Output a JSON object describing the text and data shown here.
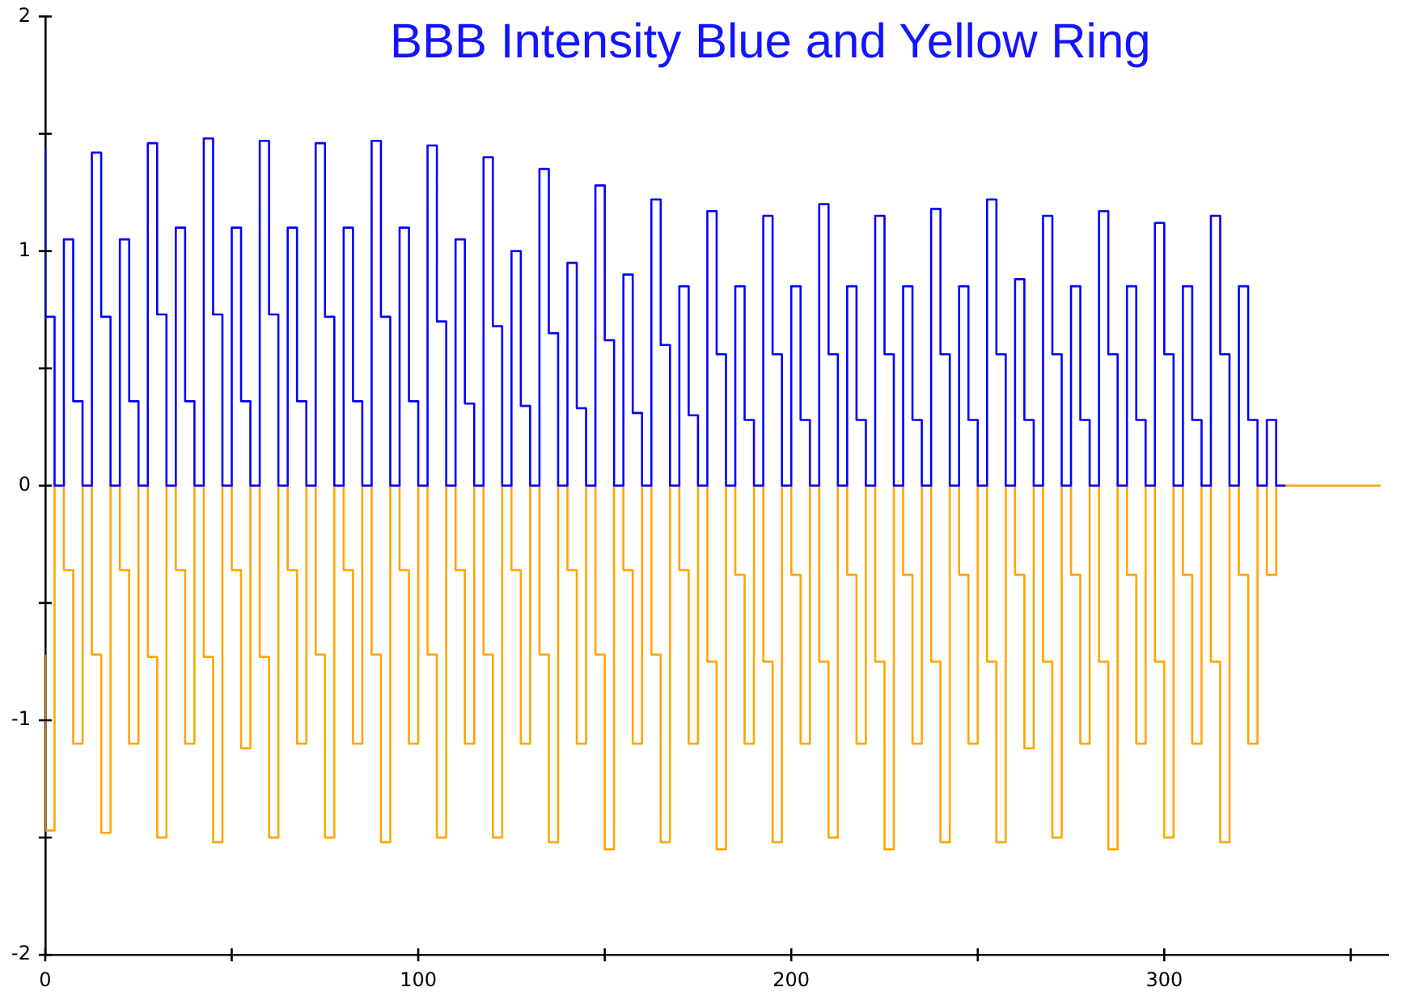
{
  "chart_data": {
    "type": "step",
    "title": "BBB Intensity Blue and Yellow Ring",
    "xlim": [
      0,
      360
    ],
    "xticks": [
      0,
      {
        "value": 50,
        "label": null
      },
      100,
      {
        "value": 150,
        "label": null
      },
      200,
      {
        "value": 250,
        "label": null
      },
      300,
      {
        "value": 350,
        "label": null
      }
    ],
    "ylim": [
      -2,
      2
    ],
    "yticks": [
      -2,
      {
        "value": -1.5,
        "label": null
      },
      -1,
      {
        "value": -0.5,
        "label": null
      },
      0,
      {
        "value": 0.5,
        "label": null
      },
      1,
      {
        "value": 1.5,
        "label": null
      },
      2
    ],
    "grid": false,
    "legend": false,
    "series": [
      {
        "color": "#0000ff",
        "x": [
          0,
          2.5,
          5,
          7.5,
          10,
          12.5,
          15,
          17.5,
          20,
          22.5,
          25,
          27.5,
          30,
          32.5,
          35,
          37.5,
          40,
          42.5,
          45,
          47.5,
          50,
          52.5,
          55,
          57.5,
          60,
          62.5,
          65,
          67.5,
          70,
          72.5,
          75,
          77.5,
          80,
          82.5,
          85,
          87.5,
          90,
          92.5,
          95,
          97.5,
          100,
          102.5,
          105,
          107.5,
          110,
          112.5,
          115,
          117.5,
          120,
          122.5,
          125,
          127.5,
          130,
          132.5,
          135,
          137.5,
          140,
          142.5,
          145,
          147.5,
          150,
          152.5,
          155,
          157.5,
          160,
          162.5,
          165,
          167.5,
          170,
          172.5,
          175,
          177.5,
          180,
          182.5,
          185,
          187.5,
          190,
          192.5,
          195,
          197.5,
          200,
          202.5,
          205,
          207.5,
          210,
          212.5,
          215,
          217.5,
          220,
          222.5,
          225,
          227.5,
          230,
          232.5,
          235,
          237.5,
          240,
          242.5,
          245,
          247.5,
          250,
          252.5,
          255,
          257.5,
          260,
          262.5,
          265,
          267.5,
          270,
          272.5,
          275,
          277.5,
          280,
          282.5,
          285,
          287.5,
          290,
          292.5,
          295,
          297.5,
          300,
          302.5,
          305,
          307.5,
          310,
          312.5,
          315,
          317.5,
          320,
          322.5,
          325,
          327.5,
          330,
          332.5
        ],
        "values": [
          1.44,
          0.72,
          0,
          1.05,
          0.36,
          0,
          1.42,
          0.72,
          0,
          1.05,
          0.36,
          0,
          1.46,
          0.73,
          0,
          1.1,
          0.36,
          0,
          1.48,
          0.73,
          0,
          1.1,
          0.36,
          0,
          1.47,
          0.73,
          0,
          1.1,
          0.36,
          0,
          1.46,
          0.72,
          0,
          1.1,
          0.36,
          0,
          1.47,
          0.72,
          0,
          1.1,
          0.36,
          0,
          1.45,
          0.7,
          0,
          1.05,
          0.35,
          0,
          1.4,
          0.68,
          0,
          1.0,
          0.34,
          0,
          1.35,
          0.65,
          0,
          0.95,
          0.33,
          0,
          1.28,
          0.62,
          0,
          0.9,
          0.31,
          0,
          1.22,
          0.6,
          0,
          0.85,
          0.3,
          0,
          1.17,
          0.56,
          0,
          0.85,
          0.28,
          0,
          1.15,
          0.56,
          0,
          0.85,
          0.28,
          0,
          1.2,
          0.56,
          0,
          0.85,
          0.28,
          0,
          1.15,
          0.56,
          0,
          0.85,
          0.28,
          0,
          1.18,
          0.56,
          0,
          0.85,
          0.28,
          0,
          1.22,
          0.56,
          0,
          0.88,
          0.28,
          0,
          1.15,
          0.56,
          0,
          0.85,
          0.28,
          0,
          1.17,
          0.56,
          0,
          0.85,
          0.28,
          0,
          1.12,
          0.56,
          0,
          0.85,
          0.28,
          0,
          1.15,
          0.56,
          0,
          0.85,
          0.28,
          0,
          0.28,
          0
        ]
      },
      {
        "color": "#ffa500",
        "x": [
          0,
          2.5,
          5,
          7.5,
          10,
          12.5,
          15,
          17.5,
          20,
          22.5,
          25,
          27.5,
          30,
          32.5,
          35,
          37.5,
          40,
          42.5,
          45,
          47.5,
          50,
          52.5,
          55,
          57.5,
          60,
          62.5,
          65,
          67.5,
          70,
          72.5,
          75,
          77.5,
          80,
          82.5,
          85,
          87.5,
          90,
          92.5,
          95,
          97.5,
          100,
          102.5,
          105,
          107.5,
          110,
          112.5,
          115,
          117.5,
          120,
          122.5,
          125,
          127.5,
          130,
          132.5,
          135,
          137.5,
          140,
          142.5,
          145,
          147.5,
          150,
          152.5,
          155,
          157.5,
          160,
          162.5,
          165,
          167.5,
          170,
          172.5,
          175,
          177.5,
          180,
          182.5,
          185,
          187.5,
          190,
          192.5,
          195,
          197.5,
          200,
          202.5,
          205,
          207.5,
          210,
          212.5,
          215,
          217.5,
          220,
          222.5,
          225,
          227.5,
          230,
          232.5,
          235,
          237.5,
          240,
          242.5,
          245,
          247.5,
          250,
          252.5,
          255,
          257.5,
          260,
          262.5,
          265,
          267.5,
          270,
          272.5,
          275,
          277.5,
          280,
          282.5,
          285,
          287.5,
          290,
          292.5,
          295,
          297.5,
          300,
          302.5,
          305,
          307.5,
          310,
          312.5,
          315,
          317.5,
          320,
          322.5,
          325,
          327.5,
          330,
          332.5,
          358
        ],
        "values": [
          -0.72,
          -1.47,
          0,
          -0.36,
          -1.1,
          0,
          -0.72,
          -1.48,
          0,
          -0.36,
          -1.1,
          0,
          -0.73,
          -1.5,
          0,
          -0.36,
          -1.1,
          0,
          -0.73,
          -1.52,
          0,
          -0.36,
          -1.12,
          0,
          -0.73,
          -1.5,
          0,
          -0.36,
          -1.1,
          0,
          -0.72,
          -1.5,
          0,
          -0.36,
          -1.1,
          0,
          -0.72,
          -1.52,
          0,
          -0.36,
          -1.1,
          0,
          -0.72,
          -1.5,
          0,
          -0.36,
          -1.1,
          0,
          -0.72,
          -1.5,
          0,
          -0.36,
          -1.1,
          0,
          -0.72,
          -1.52,
          0,
          -0.36,
          -1.1,
          0,
          -0.72,
          -1.55,
          0,
          -0.36,
          -1.1,
          0,
          -0.72,
          -1.52,
          0,
          -0.36,
          -1.1,
          0,
          -0.75,
          -1.55,
          0,
          -0.38,
          -1.1,
          0,
          -0.75,
          -1.52,
          0,
          -0.38,
          -1.1,
          0,
          -0.75,
          -1.5,
          0,
          -0.38,
          -1.1,
          0,
          -0.75,
          -1.55,
          0,
          -0.38,
          -1.1,
          0,
          -0.75,
          -1.52,
          0,
          -0.38,
          -1.1,
          0,
          -0.75,
          -1.52,
          0,
          -0.38,
          -1.12,
          0,
          -0.75,
          -1.5,
          0,
          -0.38,
          -1.1,
          0,
          -0.75,
          -1.55,
          0,
          -0.38,
          -1.1,
          0,
          -0.75,
          -1.5,
          0,
          -0.38,
          -1.1,
          0,
          -0.75,
          -1.52,
          0,
          -0.38,
          -1.1,
          0,
          -0.38,
          0,
          0
        ]
      }
    ]
  }
}
